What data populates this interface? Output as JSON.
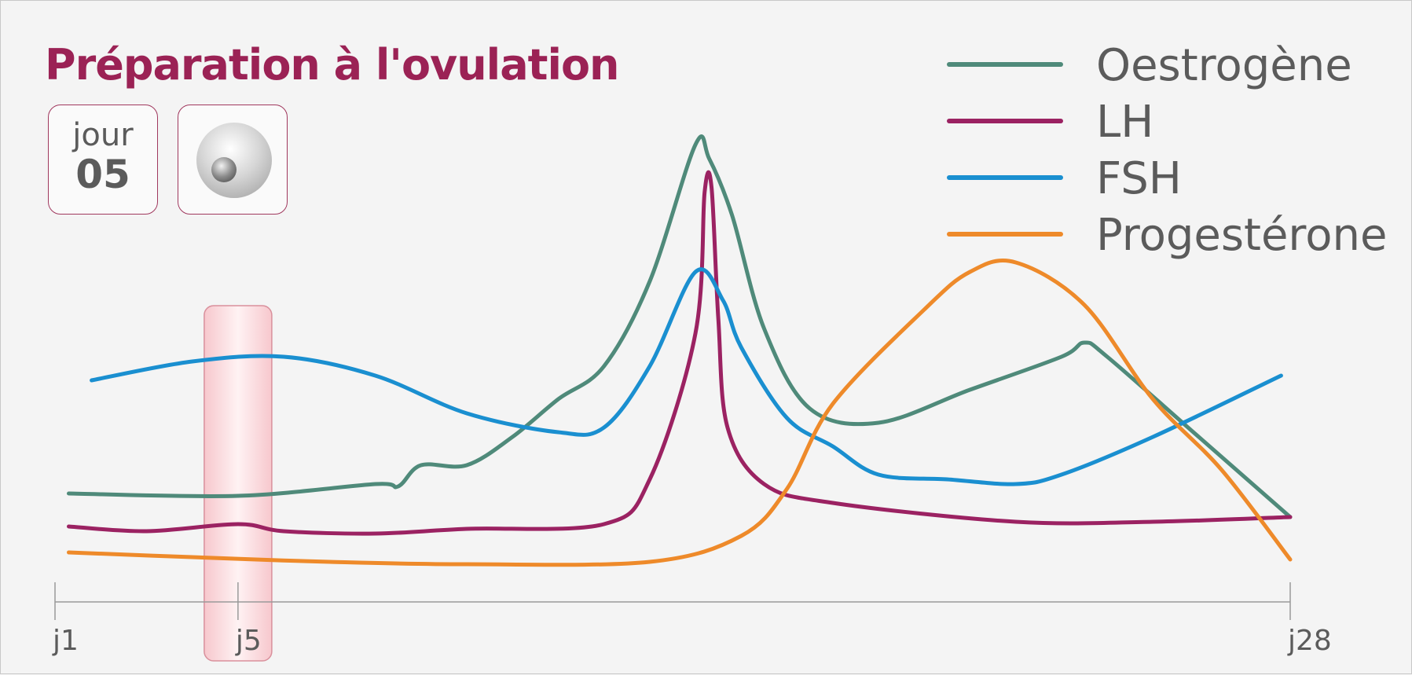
{
  "title": "Préparation à l'ovulation",
  "day_card": {
    "label": "jour",
    "value": "05"
  },
  "cell_icon": "ovum-cell-icon",
  "colors": {
    "title": "#9b2255",
    "oestrogene": "#4f8a7a",
    "lh": "#9b2262",
    "fsh": "#1a8fd0",
    "progesterone": "#ee8a2a",
    "highlight_band": "#f7c5cb"
  },
  "legend": [
    {
      "label": "Oestrogène",
      "color": "#4f8a7a"
    },
    {
      "label": "LH",
      "color": "#9b2262"
    },
    {
      "label": "FSH",
      "color": "#1a8fd0"
    },
    {
      "label": "Progestérone",
      "color": "#ee8a2a"
    }
  ],
  "chart_data": {
    "type": "line",
    "title": "",
    "xlabel": "",
    "ylabel": "",
    "x_ticks": [
      {
        "day": 1,
        "label": "j1"
      },
      {
        "day": 5,
        "label": "j5"
      },
      {
        "day": 28,
        "label": "j28"
      }
    ],
    "xlim": [
      1,
      28
    ],
    "ylim": [
      0,
      100
    ],
    "highlight_day": 5,
    "grid": false,
    "legend_position": "top-right",
    "series": [
      {
        "name": "Oestrogène",
        "color": "#4f8a7a",
        "points": [
          [
            1.3,
            23
          ],
          [
            5,
            22.5
          ],
          [
            8,
            25
          ],
          [
            8.5,
            24.5
          ],
          [
            9,
            29
          ],
          [
            10,
            29
          ],
          [
            11,
            35
          ],
          [
            12,
            43
          ],
          [
            13,
            50
          ],
          [
            14,
            68
          ],
          [
            15,
            97
          ],
          [
            15.3,
            94
          ],
          [
            15.8,
            82
          ],
          [
            16.5,
            58
          ],
          [
            17.5,
            41
          ],
          [
            19,
            38
          ],
          [
            21,
            45
          ],
          [
            23,
            52
          ],
          [
            23.5,
            55
          ],
          [
            24,
            52
          ],
          [
            26,
            35
          ],
          [
            28,
            18
          ]
        ]
      },
      {
        "name": "LH",
        "color": "#9b2262",
        "points": [
          [
            1.3,
            16
          ],
          [
            3,
            15
          ],
          [
            5,
            16.5
          ],
          [
            6,
            15
          ],
          [
            8,
            14.5
          ],
          [
            10,
            15.5
          ],
          [
            13,
            16.5
          ],
          [
            14,
            26
          ],
          [
            15,
            57
          ],
          [
            15.2,
            87
          ],
          [
            15.35,
            88
          ],
          [
            15.5,
            60
          ],
          [
            15.7,
            37
          ],
          [
            16.5,
            25
          ],
          [
            18,
            21
          ],
          [
            22,
            17
          ],
          [
            25,
            17
          ],
          [
            28,
            18
          ]
        ]
      },
      {
        "name": "FSH",
        "color": "#1a8fd0",
        "points": [
          [
            1.8,
            47
          ],
          [
            4,
            51
          ],
          [
            6,
            52
          ],
          [
            8,
            48
          ],
          [
            10,
            40
          ],
          [
            12,
            36
          ],
          [
            13,
            37
          ],
          [
            14,
            50
          ],
          [
            15,
            70
          ],
          [
            15.6,
            64
          ],
          [
            16,
            54
          ],
          [
            17,
            39
          ],
          [
            18,
            33
          ],
          [
            19,
            27
          ],
          [
            20.5,
            26
          ],
          [
            22,
            25
          ],
          [
            23,
            27
          ],
          [
            25,
            35
          ],
          [
            27.8,
            48
          ]
        ]
      },
      {
        "name": "Progestérone",
        "color": "#ee8a2a",
        "points": [
          [
            1.3,
            10.5
          ],
          [
            4,
            9.5
          ],
          [
            7,
            8.5
          ],
          [
            10,
            8
          ],
          [
            14,
            8.5
          ],
          [
            16,
            14
          ],
          [
            17,
            24
          ],
          [
            18,
            42
          ],
          [
            20,
            62
          ],
          [
            21,
            70
          ],
          [
            22,
            72
          ],
          [
            23.5,
            63
          ],
          [
            25,
            43
          ],
          [
            26.5,
            28
          ],
          [
            28,
            9
          ]
        ]
      }
    ]
  }
}
